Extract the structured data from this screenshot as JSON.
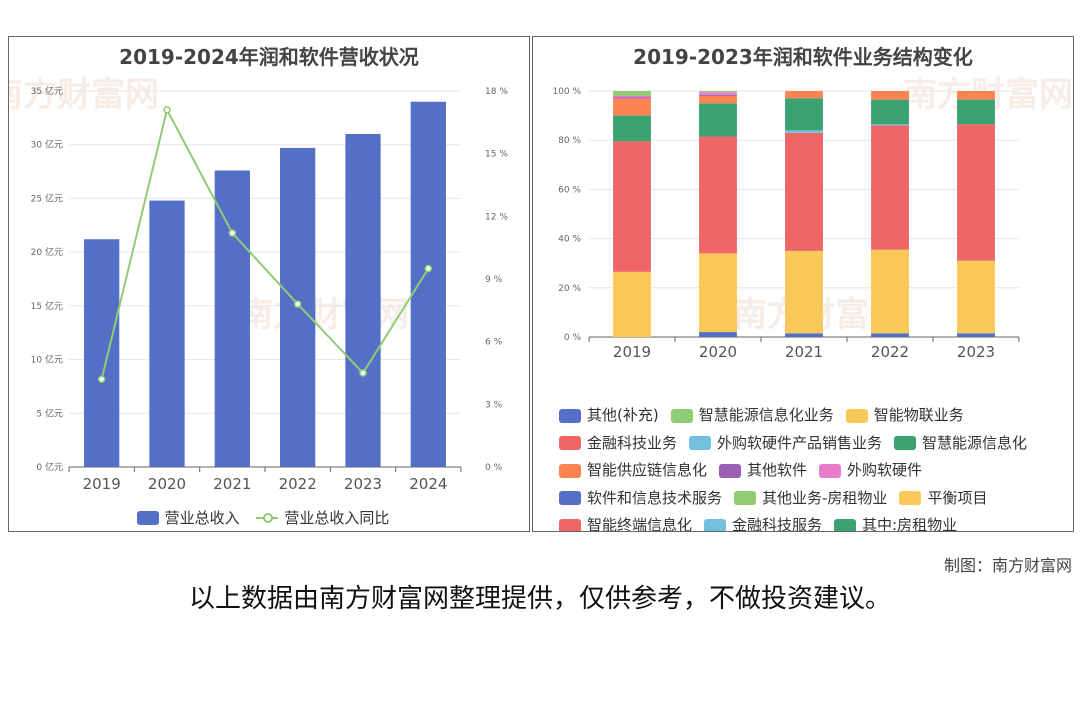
{
  "left_chart": {
    "title": "2019-2024年润和软件营收状况",
    "watermark": "南方财富网",
    "chart_data": {
      "type": "bar",
      "categories": [
        "2019",
        "2020",
        "2021",
        "2022",
        "2023",
        "2024"
      ],
      "series": [
        {
          "name": "营业总收入",
          "type": "bar",
          "axis": "left",
          "values": [
            21.2,
            24.8,
            27.6,
            29.7,
            31.0,
            34.0
          ],
          "color": "#5470c6"
        },
        {
          "name": "营业总收入同比",
          "type": "line",
          "axis": "right",
          "values": [
            4.2,
            17.1,
            11.2,
            7.8,
            4.5,
            9.5
          ],
          "color": "#91cc75"
        }
      ],
      "ylim_left": [
        0,
        35
      ],
      "ylim_right": [
        0,
        18
      ],
      "yticks_left": [
        "0 亿元",
        "5 亿元",
        "10 亿元",
        "15 亿元",
        "20 亿元",
        "25 亿元",
        "30 亿元",
        "35 亿元"
      ],
      "yticks_right": [
        "0 %",
        "3 %",
        "6 %",
        "9 %",
        "12 %",
        "15 %",
        "18 %"
      ],
      "grid": true,
      "legend_position": "bottom"
    }
  },
  "right_chart": {
    "title": "2019-2023年润和软件业务结构变化",
    "chart_data": {
      "type": "bar",
      "stacked": true,
      "categories": [
        "2019",
        "2020",
        "2021",
        "2022",
        "2023"
      ],
      "yticks": [
        "0 %",
        "20 %",
        "40 %",
        "60 %",
        "80 %",
        "100 %"
      ],
      "ylim": [
        0,
        100
      ],
      "series": [
        {
          "name": "其他(补充)",
          "color": "#5470c6",
          "values": [
            0,
            2,
            1.5,
            1.5,
            1.5
          ]
        },
        {
          "name": "智能物联业务",
          "color": "#fac858",
          "values": [
            26.5,
            32,
            33.5,
            34,
            29.5
          ]
        },
        {
          "name": "金融科技业务",
          "color": "#ee6666",
          "values": [
            53,
            47.5,
            48,
            50.5,
            55.5
          ]
        },
        {
          "name": "外购软硬件产品销售业务",
          "color": "#73c0de",
          "values": [
            0,
            0,
            1,
            0.5,
            0
          ]
        },
        {
          "name": "智慧能源信息化",
          "color": "#3ba272",
          "values": [
            10.5,
            13.5,
            13,
            10,
            10
          ]
        },
        {
          "name": "智能供应链信息化",
          "color": "#fc8452",
          "values": [
            7,
            3,
            3,
            3.5,
            3.5
          ]
        },
        {
          "name": "其他软件",
          "color": "#9a60b4",
          "values": [
            0.5,
            0.5,
            0,
            0,
            0
          ]
        },
        {
          "name": "外购软硬件",
          "color": "#ea7ccc",
          "values": [
            0.5,
            1,
            0,
            0,
            0
          ]
        },
        {
          "name": "智慧能源信息化业务",
          "color": "#91cc75",
          "values": [
            2,
            0.5,
            0,
            0,
            0
          ]
        }
      ],
      "legend": [
        {
          "label": "其他(补充)",
          "color": "#5470c6"
        },
        {
          "label": "智慧能源信息化业务",
          "color": "#91cc75"
        },
        {
          "label": "智能物联业务",
          "color": "#fac858"
        },
        {
          "label": "金融科技业务",
          "color": "#ee6666"
        },
        {
          "label": "外购软硬件产品销售业务",
          "color": "#73c0de"
        },
        {
          "label": "智慧能源信息化",
          "color": "#3ba272"
        },
        {
          "label": "智能供应链信息化",
          "color": "#fc8452"
        },
        {
          "label": "其他软件",
          "color": "#9a60b4"
        },
        {
          "label": "外购软硬件",
          "color": "#ea7ccc"
        },
        {
          "label": "软件和信息技术服务",
          "color": "#5470c6"
        },
        {
          "label": "其他业务-房租物业",
          "color": "#91cc75"
        },
        {
          "label": "平衡项目",
          "color": "#fac858"
        },
        {
          "label": "智能终端信息化",
          "color": "#ee6666"
        },
        {
          "label": "金融科技服务",
          "color": "#73c0de"
        },
        {
          "label": "其中:房租物业",
          "color": "#3ba272"
        }
      ],
      "legend_position": "bottom",
      "grid": true
    }
  },
  "footer": {
    "credit": "制图：南方财富网",
    "disclaimer": "以上数据由南方财富网整理提供，仅供参考，不做投资建议。"
  }
}
